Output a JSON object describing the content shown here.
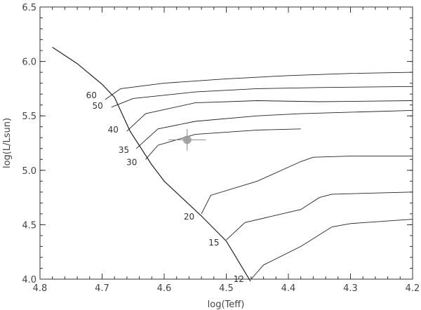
{
  "chart_data": {
    "type": "line",
    "title": "",
    "xlabel": "log(Teff)",
    "ylabel": "log(L/Lsun)",
    "xlim": [
      4.8,
      4.2
    ],
    "ylim": [
      4.0,
      6.5
    ],
    "x_reversed": true,
    "grid": false,
    "xticks": [
      4.8,
      4.7,
      4.6,
      4.5,
      4.4,
      4.3,
      4.2
    ],
    "xtick_labels": [
      "4.8",
      "4.7",
      "4.6",
      "4.5",
      "4.4",
      "4.3",
      "4.2"
    ],
    "yticks": [
      4.0,
      4.5,
      5.0,
      5.5,
      6.0,
      6.5
    ],
    "ytick_labels": [
      "4.0",
      "4.5",
      "5.0",
      "5.5",
      "6.0",
      "6.5"
    ],
    "zams": [
      [
        4.78,
        6.13
      ],
      [
        4.74,
        5.98
      ],
      [
        4.7,
        5.79
      ],
      [
        4.68,
        5.67
      ],
      [
        4.655,
        5.36
      ],
      [
        4.62,
        5.05
      ],
      [
        4.6,
        4.9
      ],
      [
        4.54,
        4.58
      ],
      [
        4.5,
        4.35
      ],
      [
        4.461,
        3.98
      ]
    ],
    "series": [
      {
        "mass_label": "60",
        "points": [
          [
            4.695,
            5.65
          ],
          [
            4.67,
            5.75
          ],
          [
            4.6,
            5.8
          ],
          [
            4.5,
            5.84
          ],
          [
            4.4,
            5.87
          ],
          [
            4.3,
            5.89
          ],
          [
            4.2,
            5.9
          ]
        ]
      },
      {
        "mass_label": "50",
        "points": [
          [
            4.685,
            5.58
          ],
          [
            4.65,
            5.66
          ],
          [
            4.55,
            5.72
          ],
          [
            4.45,
            5.75
          ],
          [
            4.35,
            5.76
          ],
          [
            4.2,
            5.77
          ]
        ]
      },
      {
        "mass_label": "40",
        "points": [
          [
            4.66,
            5.36
          ],
          [
            4.63,
            5.52
          ],
          [
            4.55,
            5.62
          ],
          [
            4.45,
            5.64
          ],
          [
            4.35,
            5.63
          ],
          [
            4.2,
            5.64
          ]
        ]
      },
      {
        "mass_label": "35",
        "points": [
          [
            4.645,
            5.2
          ],
          [
            4.61,
            5.38
          ],
          [
            4.55,
            5.45
          ],
          [
            4.45,
            5.5
          ],
          [
            4.38,
            5.52
          ],
          [
            4.2,
            5.55
          ]
        ]
      },
      {
        "mass_label": "30",
        "points": [
          [
            4.63,
            5.1
          ],
          [
            4.61,
            5.23
          ],
          [
            4.55,
            5.33
          ],
          [
            4.45,
            5.37
          ],
          [
            4.38,
            5.38
          ]
        ]
      },
      {
        "mass_label": "20",
        "points": [
          [
            4.54,
            4.6
          ],
          [
            4.525,
            4.77
          ],
          [
            4.45,
            4.9
          ],
          [
            4.38,
            5.08
          ],
          [
            4.36,
            5.12
          ],
          [
            4.3,
            5.13
          ],
          [
            4.2,
            5.13
          ]
        ]
      },
      {
        "mass_label": "15",
        "points": [
          [
            4.5,
            4.36
          ],
          [
            4.47,
            4.52
          ],
          [
            4.38,
            4.64
          ],
          [
            4.35,
            4.75
          ],
          [
            4.33,
            4.78
          ],
          [
            4.2,
            4.8
          ]
        ]
      },
      {
        "mass_label": "12",
        "points": [
          [
            4.46,
            4.0
          ],
          [
            4.44,
            4.13
          ],
          [
            4.38,
            4.3
          ],
          [
            4.33,
            4.48
          ],
          [
            4.3,
            4.51
          ],
          [
            4.2,
            4.55
          ]
        ]
      }
    ],
    "observed_star": {
      "x": 4.563,
      "y": 5.28,
      "x_err": 0.03,
      "y_err": 0.1
    }
  }
}
